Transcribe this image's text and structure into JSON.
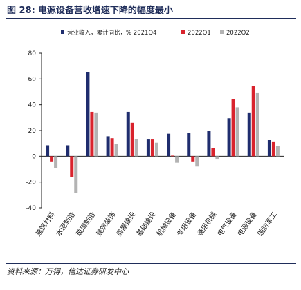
{
  "header": {
    "number": "图 28:",
    "title": "电源设备营收增速下降的幅度最小"
  },
  "footer": {
    "source": "资料来源：万得，信达证券研发中心"
  },
  "chart_data": {
    "type": "bar",
    "categories": [
      "建筑材料",
      "水泥制造",
      "玻璃制造",
      "建筑装饰",
      "房屋建设",
      "基础建设",
      "机械设备",
      "专用设备",
      "通用机械",
      "电气设备",
      "电源设备",
      "国防军工"
    ],
    "series": [
      {
        "name": "营业收入，累计同比，% 2021Q4",
        "color": "#1f2d6e",
        "values": [
          8.5,
          8.5,
          65.5,
          15.5,
          34.5,
          13,
          17.5,
          18,
          19.5,
          29.5,
          34,
          12.5
        ]
      },
      {
        "name": "2022Q1",
        "color": "#d9232d",
        "values": [
          -4,
          -16,
          34.5,
          14,
          26,
          13,
          0.5,
          -4,
          6.5,
          44.5,
          54.5,
          11.5
        ]
      },
      {
        "name": "2022Q2",
        "color": "#b3b3b3",
        "values": [
          -9,
          -28.5,
          34,
          9.5,
          13.5,
          10.5,
          -5,
          -8,
          -2,
          38,
          49.5,
          8
        ]
      }
    ],
    "yticks": [
      "80",
      "60",
      "40",
      "20",
      "0",
      "-20",
      "-40"
    ],
    "ylim": [
      -40,
      80
    ],
    "grid": false,
    "legend": "top"
  }
}
